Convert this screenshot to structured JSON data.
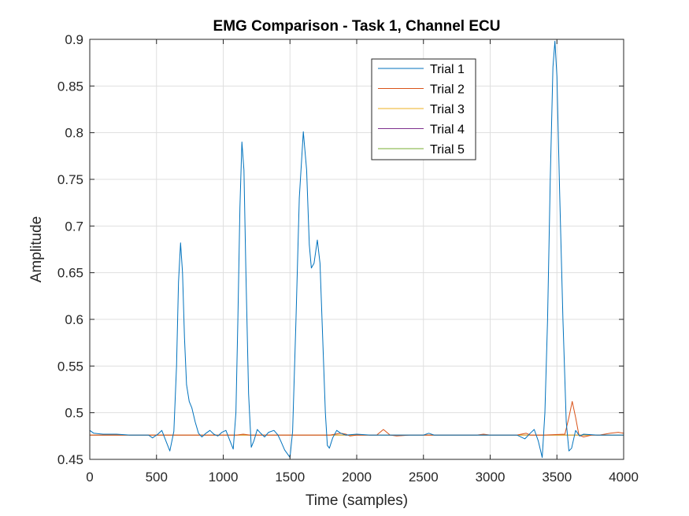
{
  "chart_data": {
    "type": "line",
    "title": "EMG Comparison - Task 1, Channel ECU",
    "xlabel": "Time (samples)",
    "ylabel": "Amplitude",
    "xlim": [
      0,
      4000
    ],
    "ylim": [
      0.45,
      0.9
    ],
    "xticks": [
      0,
      500,
      1000,
      1500,
      2000,
      2500,
      3000,
      3500,
      4000
    ],
    "yticks": [
      0.45,
      0.5,
      0.55,
      0.6,
      0.65,
      0.7,
      0.75,
      0.8,
      0.85,
      0.9
    ],
    "xtick_labels": [
      "0",
      "500",
      "1000",
      "1500",
      "2000",
      "2500",
      "3000",
      "3500",
      "4000"
    ],
    "ytick_labels": [
      "0.45",
      "0.5",
      "0.55",
      "0.6",
      "0.65",
      "0.7",
      "0.75",
      "0.8",
      "0.85",
      "0.9"
    ],
    "grid": true,
    "legend_position": "top-right",
    "series": [
      {
        "name": "Trial 1",
        "color": "#0072BD",
        "points": [
          [
            0,
            0.481
          ],
          [
            30,
            0.478
          ],
          [
            100,
            0.477
          ],
          [
            200,
            0.477
          ],
          [
            300,
            0.476
          ],
          [
            440,
            0.476
          ],
          [
            470,
            0.473
          ],
          [
            510,
            0.477
          ],
          [
            540,
            0.481
          ],
          [
            570,
            0.47
          ],
          [
            600,
            0.459
          ],
          [
            630,
            0.48
          ],
          [
            650,
            0.55
          ],
          [
            665,
            0.64
          ],
          [
            680,
            0.682
          ],
          [
            695,
            0.65
          ],
          [
            710,
            0.58
          ],
          [
            725,
            0.53
          ],
          [
            745,
            0.512
          ],
          [
            765,
            0.505
          ],
          [
            790,
            0.49
          ],
          [
            815,
            0.478
          ],
          [
            840,
            0.474
          ],
          [
            870,
            0.478
          ],
          [
            900,
            0.481
          ],
          [
            930,
            0.477
          ],
          [
            960,
            0.475
          ],
          [
            990,
            0.479
          ],
          [
            1020,
            0.481
          ],
          [
            1050,
            0.47
          ],
          [
            1075,
            0.461
          ],
          [
            1095,
            0.5
          ],
          [
            1110,
            0.6
          ],
          [
            1125,
            0.72
          ],
          [
            1140,
            0.79
          ],
          [
            1155,
            0.76
          ],
          [
            1170,
            0.65
          ],
          [
            1190,
            0.52
          ],
          [
            1210,
            0.463
          ],
          [
            1230,
            0.47
          ],
          [
            1255,
            0.482
          ],
          [
            1280,
            0.478
          ],
          [
            1310,
            0.474
          ],
          [
            1340,
            0.479
          ],
          [
            1380,
            0.481
          ],
          [
            1410,
            0.476
          ],
          [
            1430,
            0.47
          ],
          [
            1460,
            0.46
          ],
          [
            1500,
            0.452
          ],
          [
            1520,
            0.48
          ],
          [
            1545,
            0.6
          ],
          [
            1570,
            0.73
          ],
          [
            1600,
            0.801
          ],
          [
            1625,
            0.76
          ],
          [
            1645,
            0.68
          ],
          [
            1660,
            0.655
          ],
          [
            1680,
            0.66
          ],
          [
            1705,
            0.685
          ],
          [
            1725,
            0.66
          ],
          [
            1745,
            0.58
          ],
          [
            1765,
            0.5
          ],
          [
            1780,
            0.465
          ],
          [
            1795,
            0.462
          ],
          [
            1820,
            0.473
          ],
          [
            1850,
            0.481
          ],
          [
            1880,
            0.478
          ],
          [
            1920,
            0.476
          ],
          [
            2000,
            0.477
          ],
          [
            2100,
            0.476
          ],
          [
            2200,
            0.476
          ],
          [
            2300,
            0.476
          ],
          [
            2400,
            0.476
          ],
          [
            2500,
            0.476
          ],
          [
            2540,
            0.478
          ],
          [
            2580,
            0.476
          ],
          [
            2800,
            0.476
          ],
          [
            3000,
            0.476
          ],
          [
            3200,
            0.476
          ],
          [
            3260,
            0.472
          ],
          [
            3300,
            0.478
          ],
          [
            3330,
            0.482
          ],
          [
            3360,
            0.47
          ],
          [
            3390,
            0.452
          ],
          [
            3410,
            0.5
          ],
          [
            3430,
            0.6
          ],
          [
            3450,
            0.75
          ],
          [
            3470,
            0.87
          ],
          [
            3485,
            0.898
          ],
          [
            3500,
            0.86
          ],
          [
            3520,
            0.74
          ],
          [
            3545,
            0.6
          ],
          [
            3570,
            0.49
          ],
          [
            3590,
            0.459
          ],
          [
            3610,
            0.462
          ],
          [
            3640,
            0.481
          ],
          [
            3670,
            0.475
          ],
          [
            3700,
            0.477
          ],
          [
            3800,
            0.476
          ],
          [
            4000,
            0.476
          ]
        ]
      },
      {
        "name": "Trial 2",
        "color": "#D95319",
        "points": [
          [
            0,
            0.476
          ],
          [
            1100,
            0.476
          ],
          [
            1150,
            0.477
          ],
          [
            1200,
            0.476
          ],
          [
            1800,
            0.476
          ],
          [
            1880,
            0.478
          ],
          [
            1920,
            0.477
          ],
          [
            1950,
            0.475
          ],
          [
            2000,
            0.476
          ],
          [
            2150,
            0.476
          ],
          [
            2200,
            0.482
          ],
          [
            2250,
            0.476
          ],
          [
            2300,
            0.475
          ],
          [
            2400,
            0.476
          ],
          [
            2900,
            0.476
          ],
          [
            2950,
            0.477
          ],
          [
            3000,
            0.476
          ],
          [
            3200,
            0.476
          ],
          [
            3270,
            0.478
          ],
          [
            3300,
            0.476
          ],
          [
            3400,
            0.476
          ],
          [
            3560,
            0.477
          ],
          [
            3590,
            0.495
          ],
          [
            3615,
            0.512
          ],
          [
            3640,
            0.495
          ],
          [
            3665,
            0.476
          ],
          [
            3700,
            0.474
          ],
          [
            3760,
            0.476
          ],
          [
            3820,
            0.476
          ],
          [
            3900,
            0.478
          ],
          [
            3960,
            0.479
          ],
          [
            4000,
            0.478
          ]
        ]
      },
      {
        "name": "Trial 3",
        "color": "#EDB120",
        "points": [
          [
            0,
            0.476
          ],
          [
            4000,
            0.476
          ]
        ]
      },
      {
        "name": "Trial 4",
        "color": "#7E2F8E",
        "points": [
          [
            0,
            0.476
          ],
          [
            4000,
            0.476
          ]
        ]
      },
      {
        "name": "Trial 5",
        "color": "#77AC30",
        "points": [
          [
            0,
            0.476
          ],
          [
            4000,
            0.476
          ]
        ]
      }
    ]
  }
}
